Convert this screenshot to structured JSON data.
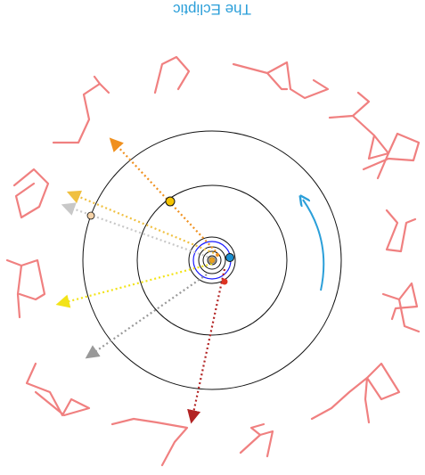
{
  "title": "The Ecliptic",
  "colors": {
    "title": "#2b9fd9",
    "constellation": "#f08080",
    "orbit": "#111111",
    "inner_orbit": "#1a1aff",
    "direction_arrow": "#2b9fd9",
    "sun": "#e8a020",
    "earth": "#1a8fd0",
    "mars": "#dd3322",
    "jupiter": "#f5c400",
    "saturn": "#f6d3a8",
    "ray_red": "#b22222",
    "ray_gray": "#999999",
    "ray_yellow": "#f2e318",
    "ray_lightgray": "#c8c8c8",
    "ray_gold": "#f0c040",
    "ray_orange": "#f0901e"
  }
}
